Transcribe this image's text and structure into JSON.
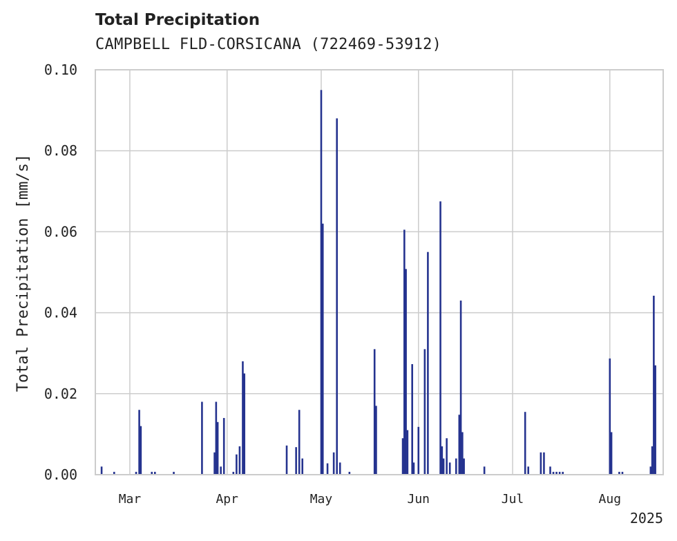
{
  "header": {
    "title": "Total Precipitation",
    "subtitle": "CAMPBELL FLD-CORSICANA (722469-53912)"
  },
  "colors": {
    "series": "#25338f",
    "grid": "#cccccc",
    "axis": "#cccccc",
    "text": "#222222"
  },
  "chart_data": {
    "type": "bar",
    "title": "Total Precipitation",
    "subtitle": "CAMPBELL FLD-CORSICANA (722469-53912)",
    "xlabel": "",
    "ylabel": "Total Precipitation [mm/s]",
    "xlim": [
      "2025-02-18",
      "2025-08-18"
    ],
    "ylim": [
      0,
      0.1
    ],
    "grid": true,
    "x_ticks": [
      {
        "label": "Mar",
        "date": "2025-03-01"
      },
      {
        "label": "Apr",
        "date": "2025-04-01"
      },
      {
        "label": "May",
        "date": "2025-05-01"
      },
      {
        "label": "Jun",
        "date": "2025-06-01"
      },
      {
        "label": "Jul",
        "date": "2025-07-01"
      },
      {
        "label": "Aug",
        "date": "2025-08-01"
      }
    ],
    "x_offset_label": "2025",
    "y_ticks": [
      {
        "label": "0.00",
        "value": 0
      },
      {
        "label": "0.02",
        "value": 0.02
      },
      {
        "label": "0.04",
        "value": 0.04
      },
      {
        "label": "0.06",
        "value": 0.06
      },
      {
        "label": "0.08",
        "value": 0.08
      },
      {
        "label": "0.10",
        "value": 0.1
      }
    ],
    "series": [
      {
        "name": "Total Precipitation",
        "points": [
          {
            "x": "2025-02-20",
            "y": 0.002
          },
          {
            "x": "2025-02-24",
            "y": 0.0007
          },
          {
            "x": "2025-03-03",
            "y": 0.0007
          },
          {
            "x": "2025-03-04",
            "y": 0.016
          },
          {
            "x": "2025-03-04T12",
            "y": 0.012
          },
          {
            "x": "2025-03-08",
            "y": 0.0007
          },
          {
            "x": "2025-03-09",
            "y": 0.0007
          },
          {
            "x": "2025-03-15",
            "y": 0.0007
          },
          {
            "x": "2025-03-24",
            "y": 0.018
          },
          {
            "x": "2025-03-28",
            "y": 0.0055
          },
          {
            "x": "2025-03-28T12",
            "y": 0.018
          },
          {
            "x": "2025-03-29",
            "y": 0.013
          },
          {
            "x": "2025-03-30",
            "y": 0.002
          },
          {
            "x": "2025-03-31",
            "y": 0.014
          },
          {
            "x": "2025-04-03",
            "y": 0.0007
          },
          {
            "x": "2025-04-04",
            "y": 0.005
          },
          {
            "x": "2025-04-05",
            "y": 0.007
          },
          {
            "x": "2025-04-06",
            "y": 0.028
          },
          {
            "x": "2025-04-06T12",
            "y": 0.025
          },
          {
            "x": "2025-04-20",
            "y": 0.0072
          },
          {
            "x": "2025-04-23",
            "y": 0.0068
          },
          {
            "x": "2025-04-24",
            "y": 0.016
          },
          {
            "x": "2025-04-25",
            "y": 0.004
          },
          {
            "x": "2025-05-01",
            "y": 0.095
          },
          {
            "x": "2025-05-01T12",
            "y": 0.062
          },
          {
            "x": "2025-05-03",
            "y": 0.0028
          },
          {
            "x": "2025-05-05",
            "y": 0.0055
          },
          {
            "x": "2025-05-06",
            "y": 0.088
          },
          {
            "x": "2025-05-07",
            "y": 0.003
          },
          {
            "x": "2025-05-10",
            "y": 0.0007
          },
          {
            "x": "2025-05-18",
            "y": 0.031
          },
          {
            "x": "2025-05-18T12",
            "y": 0.017
          },
          {
            "x": "2025-05-27",
            "y": 0.009
          },
          {
            "x": "2025-05-27T12",
            "y": 0.0605
          },
          {
            "x": "2025-05-28",
            "y": 0.0508
          },
          {
            "x": "2025-05-28T12",
            "y": 0.011
          },
          {
            "x": "2025-05-30",
            "y": 0.0273
          },
          {
            "x": "2025-05-30T12",
            "y": 0.003
          },
          {
            "x": "2025-06-01",
            "y": 0.0118
          },
          {
            "x": "2025-06-03",
            "y": 0.031
          },
          {
            "x": "2025-06-04",
            "y": 0.055
          },
          {
            "x": "2025-06-08",
            "y": 0.0675
          },
          {
            "x": "2025-06-08T12",
            "y": 0.007
          },
          {
            "x": "2025-06-09",
            "y": 0.004
          },
          {
            "x": "2025-06-10",
            "y": 0.009
          },
          {
            "x": "2025-06-11",
            "y": 0.003
          },
          {
            "x": "2025-06-13",
            "y": 0.004
          },
          {
            "x": "2025-06-14",
            "y": 0.0148
          },
          {
            "x": "2025-06-14T12",
            "y": 0.043
          },
          {
            "x": "2025-06-15",
            "y": 0.0105
          },
          {
            "x": "2025-06-15T12",
            "y": 0.004
          },
          {
            "x": "2025-06-22",
            "y": 0.002
          },
          {
            "x": "2025-07-05",
            "y": 0.0155
          },
          {
            "x": "2025-07-06",
            "y": 0.002
          },
          {
            "x": "2025-07-10",
            "y": 0.0055
          },
          {
            "x": "2025-07-11",
            "y": 0.0055
          },
          {
            "x": "2025-07-13",
            "y": 0.002
          },
          {
            "x": "2025-07-14",
            "y": 0.0007
          },
          {
            "x": "2025-07-15",
            "y": 0.0007
          },
          {
            "x": "2025-07-16",
            "y": 0.0007
          },
          {
            "x": "2025-07-17",
            "y": 0.0007
          },
          {
            "x": "2025-08-01",
            "y": 0.0287
          },
          {
            "x": "2025-08-01T12",
            "y": 0.0105
          },
          {
            "x": "2025-08-04",
            "y": 0.0007
          },
          {
            "x": "2025-08-05",
            "y": 0.0007
          },
          {
            "x": "2025-08-14",
            "y": 0.002
          },
          {
            "x": "2025-08-14T12",
            "y": 0.007
          },
          {
            "x": "2025-08-15",
            "y": 0.0442
          },
          {
            "x": "2025-08-15T12",
            "y": 0.027
          }
        ]
      }
    ]
  }
}
